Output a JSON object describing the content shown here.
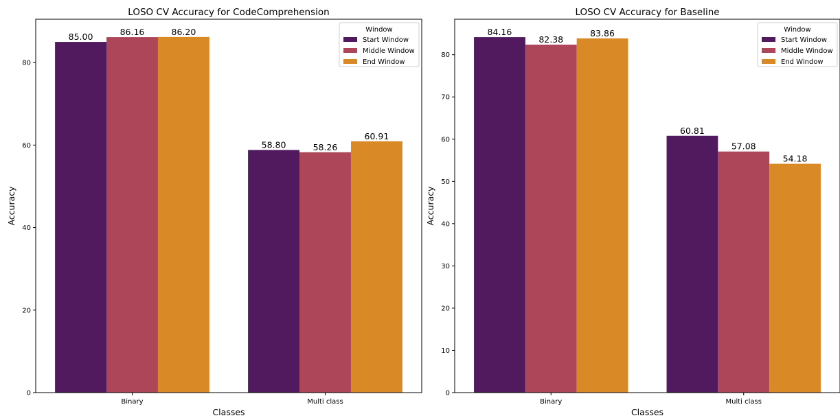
{
  "chart_data": [
    {
      "type": "bar",
      "title": "LOSO CV Accuracy for CodeComprehension",
      "xlabel": "Classes",
      "ylabel": "Accuracy",
      "categories": [
        "Binary",
        "Multi class"
      ],
      "series": [
        {
          "name": "Start Window",
          "values": [
            85.0,
            58.8
          ]
        },
        {
          "name": "Middle Window",
          "values": [
            86.16,
            58.26
          ]
        },
        {
          "name": "End Window",
          "values": [
            86.2,
            60.91
          ]
        }
      ],
      "data_labels": [
        [
          "85.00",
          "58.80"
        ],
        [
          "86.16",
          "58.26"
        ],
        [
          "86.20",
          "60.91"
        ]
      ],
      "ylim": [
        0,
        90.5
      ],
      "yticks": [
        0,
        20,
        40,
        60,
        80
      ],
      "legend": {
        "title": "Window",
        "placement": "top-right"
      },
      "grid": false
    },
    {
      "type": "bar",
      "title": "LOSO CV Accuracy for Baseline",
      "xlabel": "Classes",
      "ylabel": "Accuracy",
      "categories": [
        "Binary",
        "Multi class"
      ],
      "series": [
        {
          "name": "Start Window",
          "values": [
            84.16,
            60.81
          ]
        },
        {
          "name": "Middle Window",
          "values": [
            82.38,
            57.08
          ]
        },
        {
          "name": "End Window",
          "values": [
            83.86,
            54.18
          ]
        }
      ],
      "data_labels": [
        [
          "84.16",
          "60.81"
        ],
        [
          "82.38",
          "57.08"
        ],
        [
          "83.86",
          "54.18"
        ]
      ],
      "ylim": [
        0,
        88.4
      ],
      "yticks": [
        0,
        10,
        20,
        30,
        40,
        50,
        60,
        70,
        80
      ],
      "legend": {
        "title": "Window",
        "placement": "top-right"
      },
      "grid": false
    }
  ],
  "colors": {
    "series": [
      "#521a5e",
      "#ad4659",
      "#d98a27"
    ],
    "axis": "#000000",
    "legend_border": "#cccccc"
  }
}
